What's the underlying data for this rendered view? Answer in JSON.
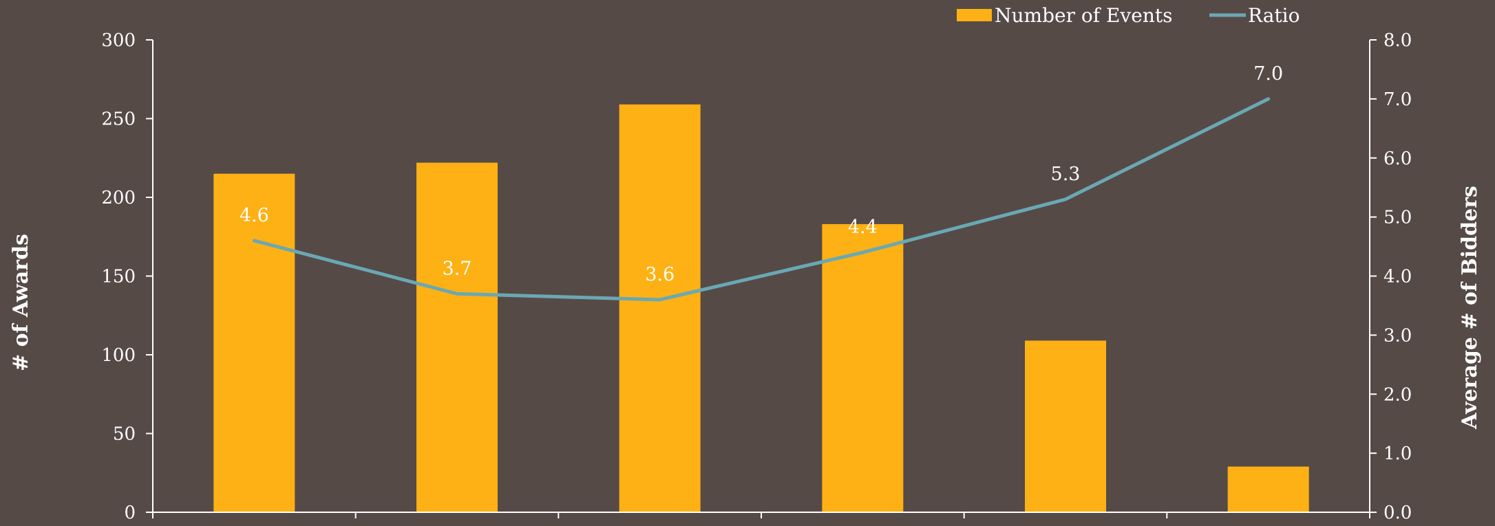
{
  "chart_data": {
    "type": "bar",
    "categories": [
      "",
      "",
      "",
      "",
      "",
      ""
    ],
    "series": [
      {
        "name": "Number of Events",
        "type": "bar",
        "axis": "left",
        "color": "#fdb114",
        "values": [
          215,
          222,
          259,
          183,
          109,
          29
        ]
      },
      {
        "name": "Ratio",
        "type": "line",
        "axis": "right",
        "color": "#6aa8b3",
        "values": [
          4.6,
          3.7,
          3.6,
          4.4,
          5.3,
          7.0
        ],
        "labels": [
          "4.6",
          "3.7",
          "3.6",
          "4.4",
          "5.3",
          "7.0"
        ]
      }
    ],
    "ylabel": "# of Awards",
    "y2label": "Average # of Bidders",
    "ylim": [
      0,
      300
    ],
    "y2lim": [
      0,
      8
    ],
    "yticks": [
      "0",
      "50",
      "100",
      "150",
      "200",
      "250",
      "300"
    ],
    "y2ticks": [
      "0.0",
      "1.0",
      "2.0",
      "3.0",
      "4.0",
      "5.0",
      "6.0",
      "7.0",
      "8.0"
    ],
    "grid": false,
    "legend_position": "top-right",
    "background": "#564a47",
    "axis_color": "#ffffff"
  }
}
